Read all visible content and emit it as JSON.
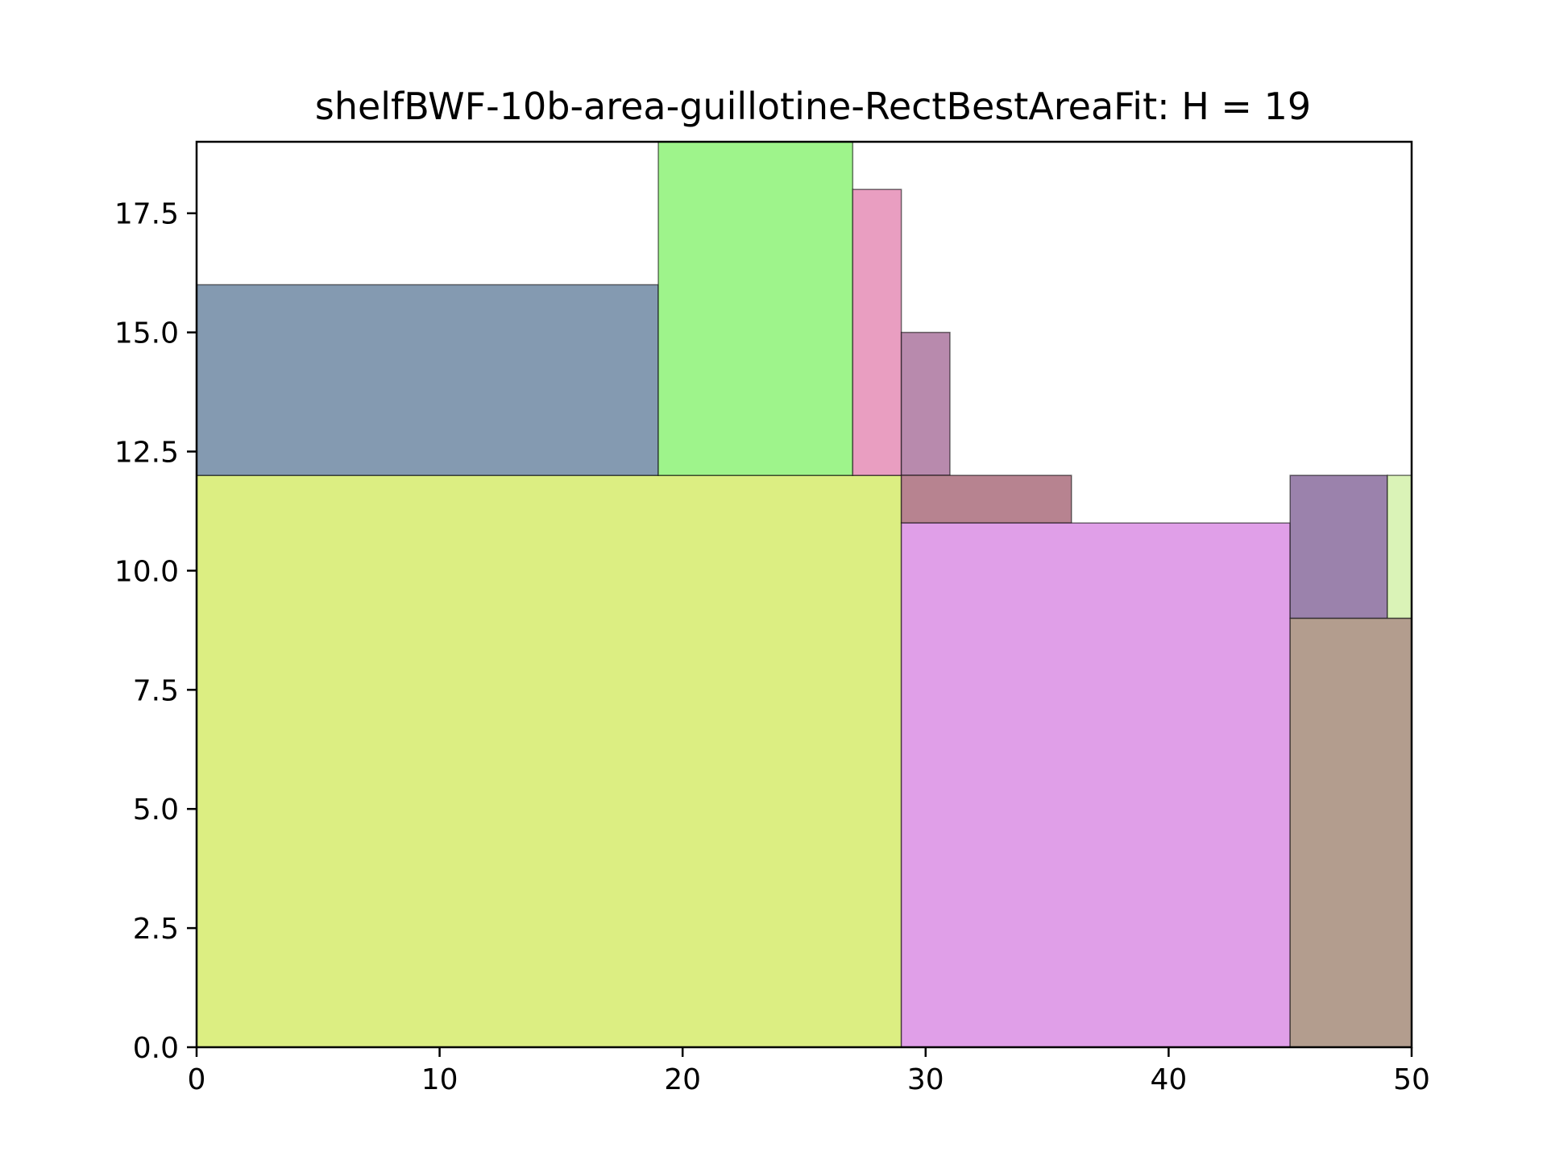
{
  "chart_data": {
    "type": "rectangle-packing",
    "title": "shelfBWF-10b-area-guillotine-RectBestAreaFit: H = 19",
    "xlabel": "",
    "ylabel": "",
    "xlim": [
      0,
      50
    ],
    "ylim": [
      0,
      19
    ],
    "x_ticks": [
      0,
      10,
      20,
      30,
      40,
      50
    ],
    "x_tick_labels": [
      "0",
      "10",
      "20",
      "30",
      "40",
      "50"
    ],
    "y_ticks": [
      0,
      2.5,
      5,
      7.5,
      10,
      12.5,
      15,
      17.5
    ],
    "y_tick_labels": [
      "0.0",
      "2.5",
      "5.0",
      "7.5",
      "10.0",
      "12.5",
      "15.0",
      "17.5"
    ],
    "grid": false,
    "legend": false,
    "rectangles": [
      {
        "x": 0,
        "y": 0,
        "width": 29,
        "height": 12,
        "color": "#dcee82"
      },
      {
        "x": 0,
        "y": 12,
        "width": 19,
        "height": 4,
        "color": "#849ab1"
      },
      {
        "x": 19,
        "y": 12,
        "width": 8,
        "height": 7,
        "color": "#9ef48b"
      },
      {
        "x": 27,
        "y": 12,
        "width": 2,
        "height": 6,
        "color": "#e99ec1"
      },
      {
        "x": 29,
        "y": 12,
        "width": 2,
        "height": 3,
        "color": "#b88aad"
      },
      {
        "x": 29,
        "y": 11,
        "width": 7,
        "height": 1,
        "color": "#b78390"
      },
      {
        "x": 29,
        "y": 0,
        "width": 16,
        "height": 11,
        "color": "#e09fe8"
      },
      {
        "x": 45,
        "y": 9,
        "width": 4,
        "height": 3,
        "color": "#9b82ac"
      },
      {
        "x": 49,
        "y": 9,
        "width": 1,
        "height": 3,
        "color": "#daf3b7"
      },
      {
        "x": 45,
        "y": 0,
        "width": 5,
        "height": 9,
        "color": "#b39d8e"
      }
    ]
  }
}
